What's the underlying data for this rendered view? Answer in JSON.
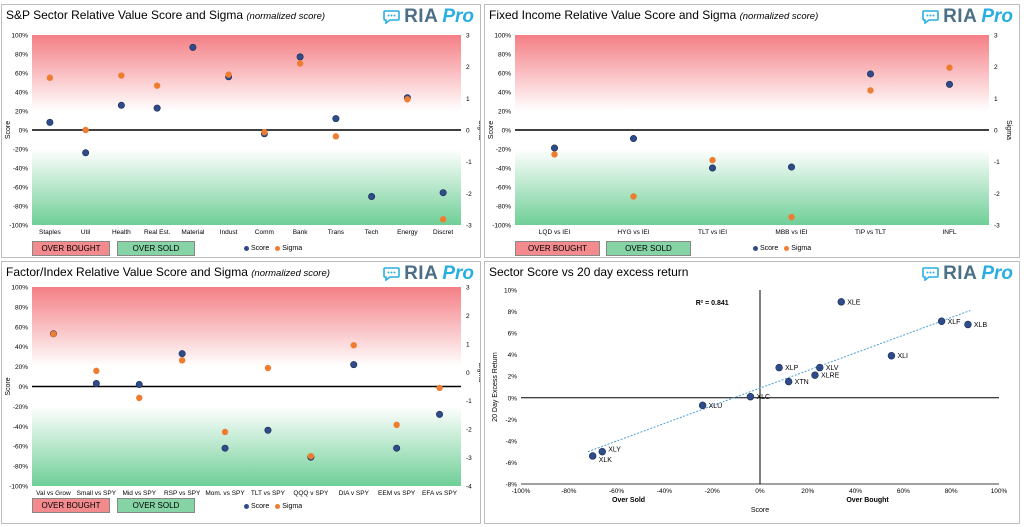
{
  "colors": {
    "score": "#2f4b8a",
    "sigma": "#ee7d31",
    "overbought": "#f28a8e",
    "oversold": "#86d4a6",
    "brand_ria": "#4b6f86",
    "brand_pro": "#29aee1"
  },
  "brand": {
    "ria": "RIA",
    "pro": "Pro",
    "icon": "chat-bubble-icon"
  },
  "legend": {
    "overbought": "OVER BOUGHT",
    "oversold": "OVER SOLD",
    "score": "Score",
    "sigma": "Sigma"
  },
  "panels": {
    "sector": {
      "title": "S&P Sector Relative Value Score and Sigma",
      "note": "(normalized score)"
    },
    "fixed": {
      "title": "Fixed Income Relative Value Score and Sigma",
      "note": "(normalized score)"
    },
    "factor": {
      "title": "Factor/Index Relative Value Score and Sigma",
      "note": "(normalized score)"
    },
    "scatter": {
      "title": "Sector Score vs 20 day excess return",
      "note": ""
    }
  },
  "chart_data": [
    {
      "type": "scatter",
      "title": "S&P Sector Relative Value Score and Sigma (normalized score)",
      "ylabel": "Score",
      "y2label": "Sigma",
      "ylim": [
        -100,
        100
      ],
      "y2lim": [
        -3,
        3
      ],
      "yticks": [
        "100%",
        "80%",
        "60%",
        "40%",
        "20%",
        "0%",
        "-20%",
        "-40%",
        "-60%",
        "-80%",
        "-100%"
      ],
      "y2ticks": [
        "3",
        "2",
        "1",
        "0",
        "-1",
        "-2",
        "-3"
      ],
      "categories": [
        "Staples",
        "Util",
        "Health",
        "Real Est.",
        "Material",
        "Indust",
        "Comm",
        "Bank",
        "Trans",
        "Tech",
        "Energy",
        "Discret"
      ],
      "series": [
        {
          "name": "Score",
          "axis": "left",
          "values": [
            8,
            -24,
            26,
            23,
            87,
            56,
            -4,
            77,
            12,
            -70,
            34,
            -66
          ]
        },
        {
          "name": "Sigma",
          "axis": "right",
          "values": [
            1.65,
            0,
            1.72,
            1.4,
            null,
            1.75,
            -0.07,
            2.1,
            -0.2,
            null,
            0.97,
            -2.82
          ]
        }
      ]
    },
    {
      "type": "scatter",
      "title": "Fixed Income Relative Value Score and Sigma (normalized score)",
      "ylabel": "Score",
      "y2label": "Sigma",
      "ylim": [
        -100,
        100
      ],
      "y2lim": [
        -3,
        3
      ],
      "yticks": [
        "100%",
        "80%",
        "60%",
        "40%",
        "20%",
        "0%",
        "-20%",
        "-40%",
        "-60%",
        "-80%",
        "-100%"
      ],
      "y2ticks": [
        "3",
        "2",
        "1",
        "0",
        "-1",
        "-2",
        "-3"
      ],
      "categories": [
        "LQD vs IEI",
        "HYG vs IEI",
        "TLT vs IEI",
        "MBB vs IEI",
        "TIP vs TLT",
        "INFL"
      ],
      "series": [
        {
          "name": "Score",
          "axis": "left",
          "values": [
            -19,
            -9,
            -40,
            -39,
            59,
            48
          ]
        },
        {
          "name": "Sigma",
          "axis": "right",
          "values": [
            -0.77,
            -2.1,
            -0.95,
            -2.75,
            1.25,
            1.97
          ]
        }
      ]
    },
    {
      "type": "scatter",
      "title": "Factor/Index Relative Value Score and Sigma (normalized score)",
      "ylabel": "Score",
      "y2label": "Sigma",
      "ylim": [
        -100,
        100
      ],
      "y2lim": [
        -4,
        3
      ],
      "yticks": [
        "100%",
        "80%",
        "60%",
        "40%",
        "20%",
        "0%",
        "-20%",
        "-40%",
        "-60%",
        "-80%",
        "-100%"
      ],
      "y2ticks": [
        "3",
        "2",
        "1",
        "0",
        "-1",
        "-2",
        "-3",
        "-4"
      ],
      "categories": [
        "Val vs Grow",
        "Small vs SPY",
        "Mid vs SPY",
        "RSP vs SPY",
        "Mom. vs SPY",
        "TLT vs SPY",
        "QQQ v SPY",
        "DIA v SPY",
        "EEM vs SPY",
        "EFA vs SPY"
      ],
      "series": [
        {
          "name": "Score",
          "axis": "left",
          "values": [
            53,
            3,
            2,
            33,
            -62,
            -44,
            -71,
            22,
            -62,
            -28
          ]
        },
        {
          "name": "Sigma",
          "axis": "right",
          "values": [
            1.35,
            0.05,
            -0.9,
            0.42,
            -2.1,
            0.15,
            -2.95,
            0.95,
            -1.85,
            -0.55
          ]
        }
      ]
    },
    {
      "type": "scatter",
      "title": "Sector Score vs 20 day excess return",
      "xlabel": "Score",
      "ylabel": "20 Day Excess Return",
      "xlim": [
        -100,
        100
      ],
      "ylim": [
        -8,
        10
      ],
      "xticks": [
        "-100%",
        "-80%",
        "-60%",
        "-40%",
        "-20%",
        "0%",
        "20%",
        "40%",
        "60%",
        "80%",
        "100%"
      ],
      "yticks": [
        "10%",
        "8%",
        "6%",
        "4%",
        "2%",
        "0%",
        "-2%",
        "-4%",
        "-6%",
        "-8%"
      ],
      "annotation": "R² = 0.841",
      "x_side_labels": {
        "left": "Over Sold",
        "right": "Over Bought"
      },
      "trendline": {
        "x": [
          -72,
          88
        ],
        "y": [
          -5.0,
          8.1
        ]
      },
      "points": [
        {
          "label": "XLE",
          "x": 34,
          "y": 8.9
        },
        {
          "label": "XLF",
          "x": 76,
          "y": 7.1
        },
        {
          "label": "XLB",
          "x": 87,
          "y": 6.8
        },
        {
          "label": "XLI",
          "x": 55,
          "y": 3.9
        },
        {
          "label": "XLP",
          "x": 8,
          "y": 2.8
        },
        {
          "label": "XLV",
          "x": 25,
          "y": 2.8
        },
        {
          "label": "XLRE",
          "x": 23,
          "y": 2.1
        },
        {
          "label": "XTN",
          "x": 12,
          "y": 1.5
        },
        {
          "label": "XLC",
          "x": -4,
          "y": 0.1
        },
        {
          "label": "XLU",
          "x": -24,
          "y": -0.7
        },
        {
          "label": "XLY",
          "x": -66,
          "y": -5.0
        },
        {
          "label": "XLK",
          "x": -70,
          "y": -5.4
        }
      ]
    }
  ]
}
